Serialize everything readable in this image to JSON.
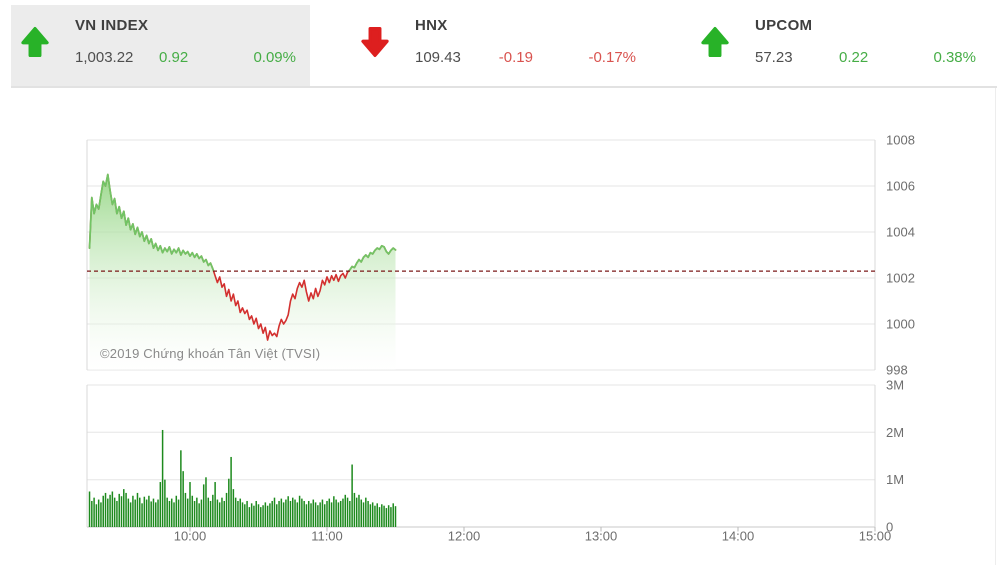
{
  "colors": {
    "up": "#28b228",
    "down": "#dd1f1f",
    "up_text": "#46ad46",
    "down_text": "#d9534f",
    "panel_bg": "#ececec",
    "divider": "#e2e2e2",
    "text_primary": "#3f3f3f",
    "text_value": "#4e4e4e",
    "axis_text": "#6e6e6e",
    "watermark_text": "#8a8a8a"
  },
  "header": {
    "indices": [
      {
        "name": "VN INDEX",
        "value": "1,003.22",
        "change": "0.92",
        "pct": "0.09%",
        "direction": "up",
        "highlighted": true
      },
      {
        "name": "HNX",
        "value": "109.43",
        "change": "-0.19",
        "pct": "-0.17%",
        "direction": "down",
        "highlighted": false
      },
      {
        "name": "UPCOM",
        "value": "57.23",
        "change": "0.22",
        "pct": "0.38%",
        "direction": "up",
        "highlighted": false
      }
    ]
  },
  "watermark": "©2019 Chứng khoán Tân Việt (TVSI)",
  "chart_data": [
    {
      "type": "area",
      "description": "VN-Index intraday price, 1-minute data from 09:16 to 11:30, plotted on axis 09:15-15:00",
      "x_axis_start": "09:15",
      "x_axis_end": "15:00",
      "interval_minutes": 1,
      "ylim": [
        998,
        1008
      ],
      "yticks": [
        1008,
        1006,
        1004,
        1002,
        1000,
        998
      ],
      "xticks": [
        {
          "label": "10:00",
          "m": 45
        },
        {
          "label": "11:00",
          "m": 105
        },
        {
          "label": "12:00",
          "m": 165
        },
        {
          "label": "13:00",
          "m": 225
        },
        {
          "label": "14:00",
          "m": 285
        },
        {
          "label": "15:00",
          "m": 345
        }
      ],
      "reference_value": 1002.3,
      "last_value": 1003.22,
      "colors": {
        "line_up": "#72c465",
        "line_down": "#d3302f",
        "reference": "#7b1818",
        "fill_top": "#8fd47e",
        "fill_bottom": "#ffffff"
      },
      "values": [
        1003.3,
        1005.5,
        1004.8,
        1005.2,
        1005.0,
        1005.6,
        1006.2,
        1006.0,
        1006.5,
        1005.8,
        1005.2,
        1005.45,
        1004.8,
        1005.1,
        1004.6,
        1004.9,
        1004.3,
        1004.6,
        1004.1,
        1004.35,
        1003.9,
        1004.2,
        1003.8,
        1004.0,
        1003.6,
        1003.85,
        1003.5,
        1003.7,
        1003.3,
        1003.5,
        1003.2,
        1003.4,
        1003.1,
        1003.3,
        1003.15,
        1003.35,
        1003.05,
        1003.25,
        1003.1,
        1003.3,
        1003.0,
        1003.2,
        1003.05,
        1003.15,
        1002.95,
        1003.1,
        1002.9,
        1003.05,
        1002.85,
        1002.95,
        1002.7,
        1002.8,
        1002.55,
        1002.65,
        1002.4,
        1002.1,
        1001.8,
        1002.05,
        1001.6,
        1001.75,
        1001.2,
        1001.5,
        1001.0,
        1001.3,
        1000.8,
        1001.0,
        1000.5,
        1000.7,
        1000.45,
        1000.6,
        1000.2,
        1000.35,
        1000.0,
        1000.25,
        999.8,
        1000.0,
        999.6,
        999.85,
        999.3,
        999.7,
        999.5,
        999.6,
        999.45,
        999.9,
        1000.2,
        1000.0,
        1000.15,
        1000.4,
        1001.0,
        1001.3,
        1001.1,
        1001.55,
        1001.8,
        1001.6,
        1001.9,
        1001.4,
        1001.0,
        1001.35,
        1001.1,
        1001.55,
        1001.2,
        1001.45,
        1001.9,
        1001.7,
        1002.05,
        1001.8,
        1002.1,
        1001.9,
        1002.15,
        1001.85,
        1002.1,
        1002.2,
        1002.0,
        1002.25,
        1002.35,
        1002.5,
        1002.45,
        1002.65,
        1002.8,
        1002.7,
        1002.9,
        1003.0,
        1002.9,
        1003.1,
        1003.05,
        1003.2,
        1003.3,
        1003.25,
        1003.4,
        1003.35,
        1003.15,
        1003.05,
        1003.2,
        1003.3,
        1003.22
      ]
    },
    {
      "type": "bar",
      "description": "Trading volume per minute, millions of shares, 09:16 to 11:30",
      "ylim": [
        0,
        3
      ],
      "yticks": [
        {
          "label": "3M",
          "value": 3
        },
        {
          "label": "2M",
          "value": 2
        },
        {
          "label": "1M",
          "value": 1
        },
        {
          "label": "0",
          "value": 0
        }
      ],
      "color": "#1d8a1d",
      "values": [
        0.75,
        0.55,
        0.62,
        0.48,
        0.58,
        0.52,
        0.66,
        0.72,
        0.6,
        0.68,
        0.75,
        0.62,
        0.55,
        0.7,
        0.65,
        0.8,
        0.72,
        0.6,
        0.52,
        0.66,
        0.58,
        0.72,
        0.62,
        0.5,
        0.64,
        0.58,
        0.66,
        0.54,
        0.6,
        0.52,
        0.58,
        0.95,
        2.05,
        1.0,
        0.62,
        0.55,
        0.6,
        0.52,
        0.66,
        0.58,
        1.62,
        1.18,
        0.72,
        0.6,
        0.95,
        0.66,
        0.55,
        0.62,
        0.5,
        0.58,
        0.9,
        1.05,
        0.62,
        0.55,
        0.68,
        0.95,
        0.58,
        0.52,
        0.62,
        0.55,
        0.72,
        1.02,
        1.48,
        0.8,
        0.62,
        0.55,
        0.6,
        0.52,
        0.48,
        0.55,
        0.42,
        0.5,
        0.45,
        0.55,
        0.48,
        0.42,
        0.46,
        0.52,
        0.45,
        0.5,
        0.55,
        0.62,
        0.48,
        0.55,
        0.6,
        0.52,
        0.58,
        0.65,
        0.55,
        0.62,
        0.58,
        0.52,
        0.66,
        0.6,
        0.55,
        0.48,
        0.55,
        0.5,
        0.58,
        0.52,
        0.46,
        0.52,
        0.58,
        0.48,
        0.55,
        0.6,
        0.52,
        0.65,
        0.58,
        0.52,
        0.55,
        0.6,
        0.68,
        0.62,
        0.55,
        1.32,
        0.72,
        0.62,
        0.68,
        0.58,
        0.52,
        0.62,
        0.55,
        0.48,
        0.52,
        0.45,
        0.5,
        0.42,
        0.48,
        0.45,
        0.4,
        0.46,
        0.42,
        0.5,
        0.44
      ]
    }
  ]
}
